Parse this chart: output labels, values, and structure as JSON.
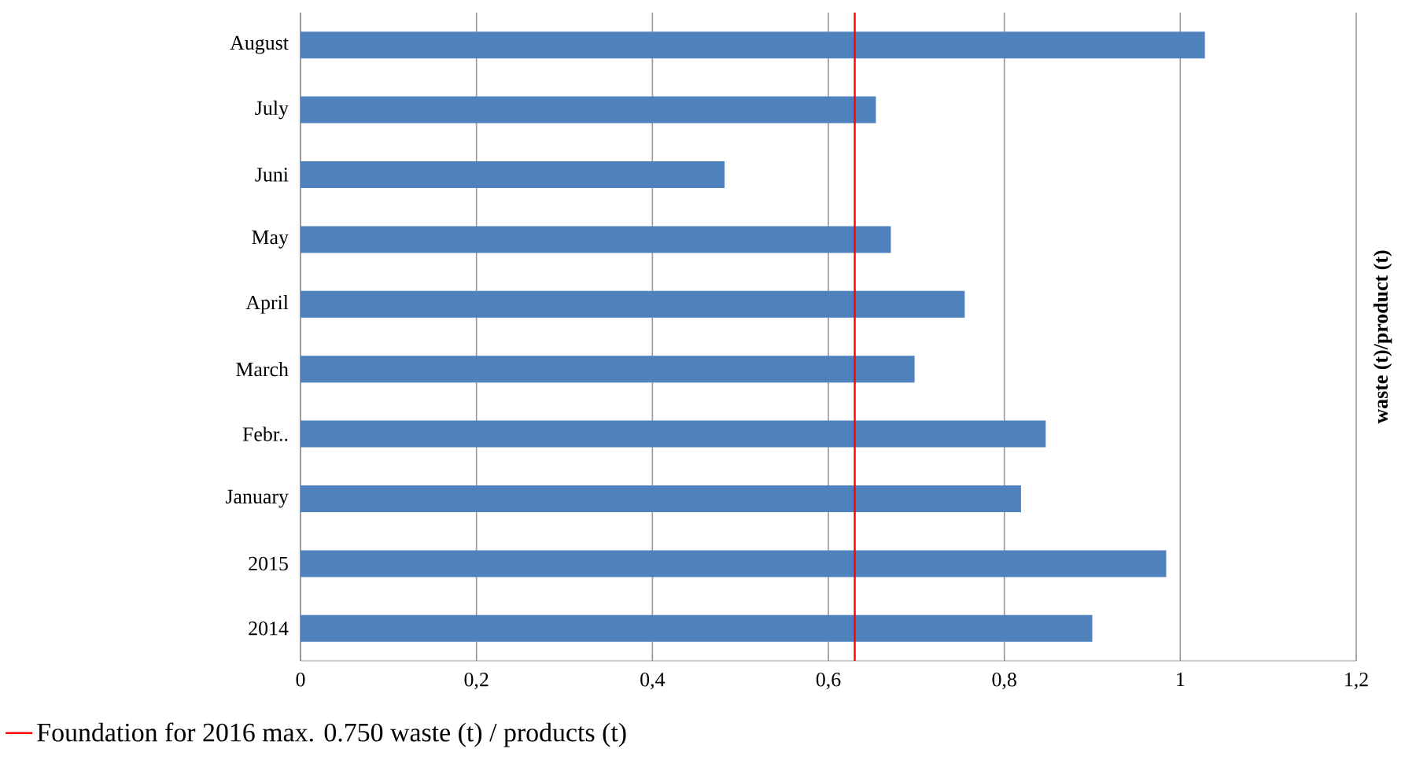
{
  "chart_data": {
    "type": "bar",
    "orientation": "horizontal",
    "categories": [
      "August",
      "July",
      "Juni",
      "May",
      "April",
      "March",
      "Febr..",
      "January",
      "2015",
      "2014"
    ],
    "values": [
      1.028,
      0.654,
      0.482,
      0.671,
      0.755,
      0.698,
      0.847,
      0.819,
      0.984,
      0.9
    ],
    "color": "#4f81bd",
    "xlim": [
      0,
      1.2
    ],
    "xticks": [
      0,
      {
        "value": 0.2,
        "label": "0,2"
      },
      {
        "value": 0.4,
        "label": "0,4"
      },
      {
        "value": 0.6,
        "label": "0,6"
      },
      {
        "value": 0.8,
        "label": "0,8"
      },
      1,
      {
        "value": 1.2,
        "label": "1,2"
      }
    ],
    "ylabel": "waste (t)/product (t)",
    "grid": "x",
    "legend": "bottom",
    "ref_lines": [
      {
        "axis": "x",
        "value": 0.63,
        "label": "Foundation for 2016 max. 0.750 waste (t) / products (t)",
        "color": "#ff0000"
      }
    ]
  }
}
